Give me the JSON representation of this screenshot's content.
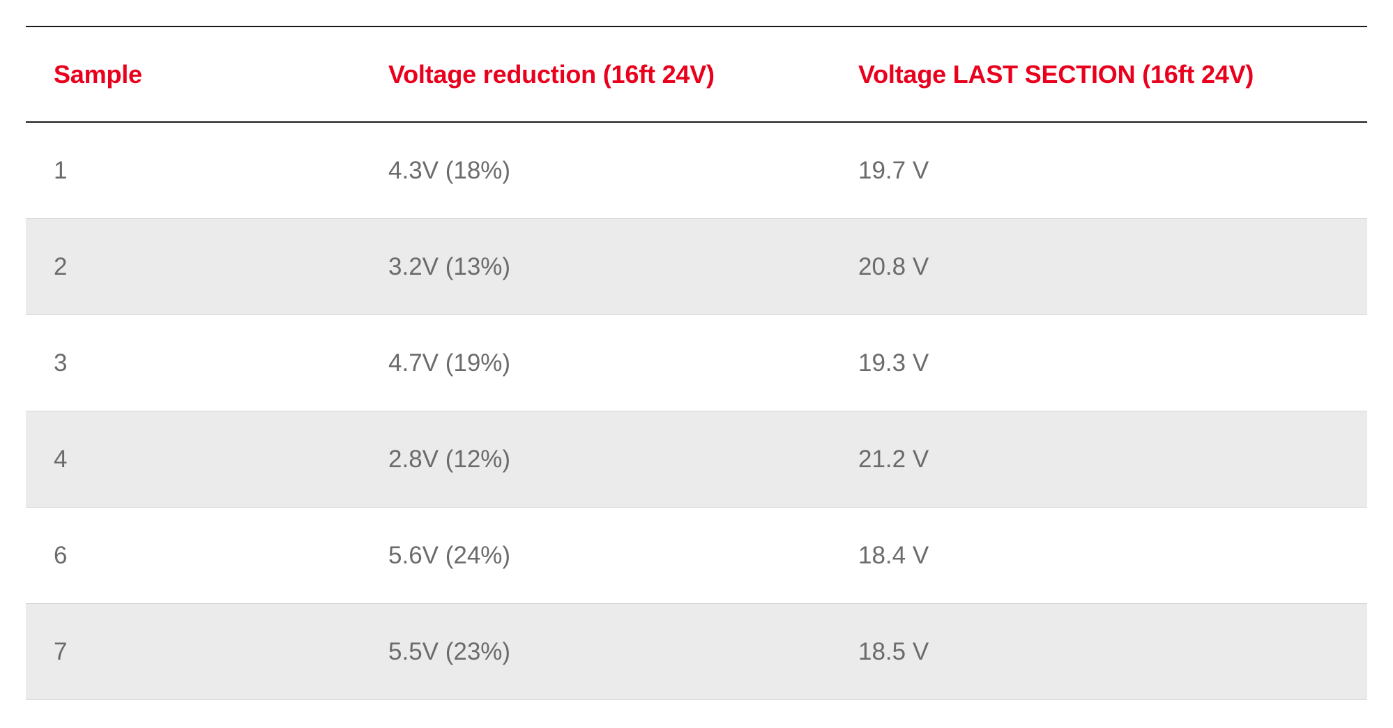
{
  "colors": {
    "header_text": "#e8001c",
    "body_text": "#6b6b6b",
    "alt_row_bg": "#ebebeb",
    "rule": "#1a1a1a"
  },
  "table": {
    "headers": [
      "Sample",
      "Voltage reduction (16ft 24V)",
      "Voltage LAST SECTION (16ft 24V)"
    ],
    "rows": [
      [
        "1",
        "4.3V (18%)",
        "19.7 V"
      ],
      [
        "2",
        "3.2V (13%)",
        "20.8 V"
      ],
      [
        "3",
        "4.7V (19%)",
        "19.3 V"
      ],
      [
        "4",
        "2.8V (12%)",
        "21.2 V"
      ],
      [
        "6",
        "5.6V (24%)",
        "18.4 V"
      ],
      [
        "7",
        "5.5V (23%)",
        "18.5 V"
      ]
    ]
  }
}
